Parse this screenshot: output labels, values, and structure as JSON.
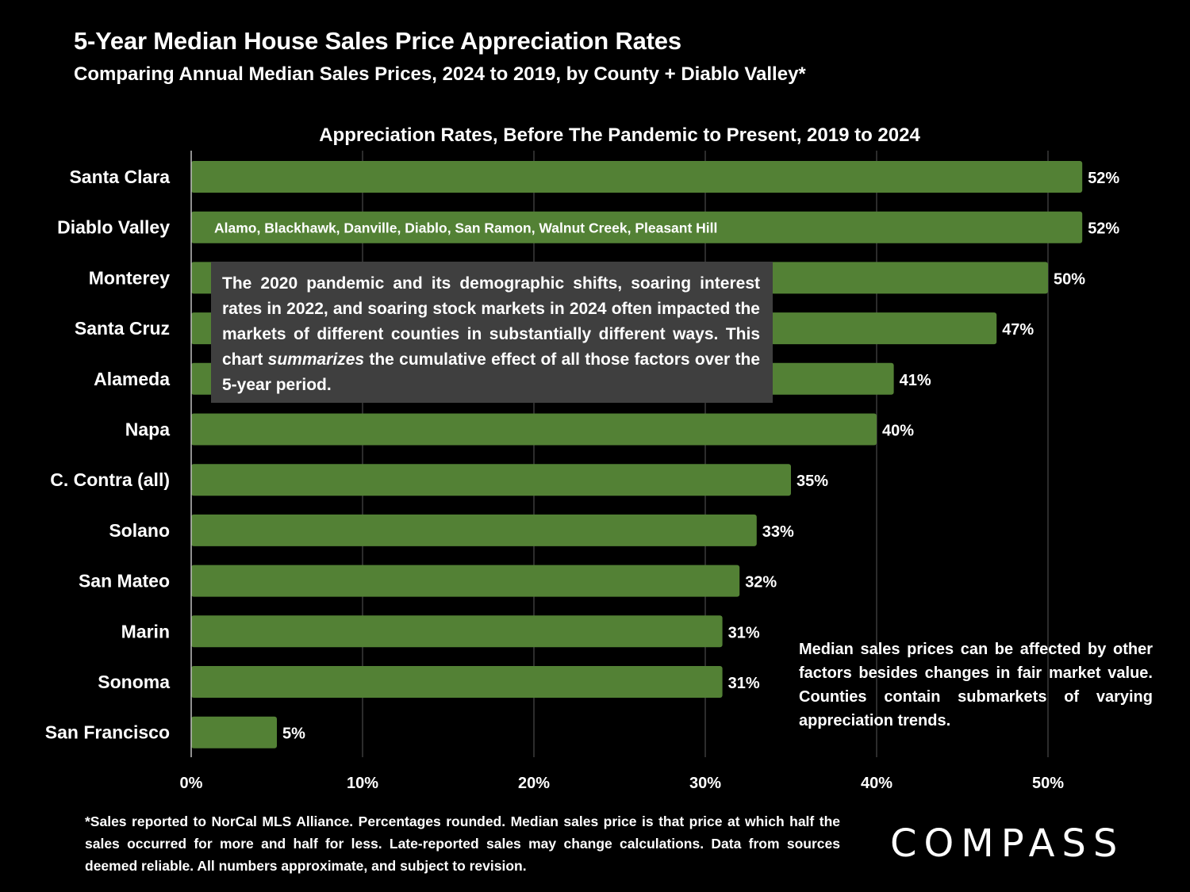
{
  "header": {
    "title": "5-Year Median House Sales Price Appreciation Rates",
    "subtitle": "Comparing Annual Median Sales Prices, 2024 to 2019, by County + Diablo Valley*"
  },
  "chart_data": {
    "type": "bar",
    "orientation": "horizontal",
    "title": "Appreciation Rates, Before The Pandemic to Present, 2019 to 2024",
    "categories": [
      "Santa Clara",
      "Diablo Valley",
      "Monterey",
      "Santa Cruz",
      "Alameda",
      "Napa",
      "C. Contra (all)",
      "Solano",
      "San Mateo",
      "Marin",
      "Sonoma",
      "San Francisco"
    ],
    "values": [
      52,
      52,
      50,
      47,
      41,
      40,
      35,
      33,
      32,
      31,
      31,
      5
    ],
    "value_labels": [
      "52%",
      "52%",
      "50%",
      "47%",
      "41%",
      "40%",
      "35%",
      "33%",
      "32%",
      "31%",
      "31%",
      "5%"
    ],
    "xlim": [
      0,
      55
    ],
    "xticks": [
      "0%",
      "10%",
      "20%",
      "30%",
      "40%",
      "50%"
    ],
    "xtick_values": [
      0,
      10,
      20,
      30,
      40,
      50
    ],
    "grid": "vertical gridlines",
    "bar_color": "#538135",
    "bar_annotation": {
      "category": "Diablo Valley",
      "text": "Alamo, Blackhawk, Danville, Diablo, San Ramon, Walnut Creek, Pleasant Hill"
    }
  },
  "callout": {
    "before": "The 2020 pandemic and its demographic shifts, soaring interest rates in 2022, and soaring stock markets in 2024 often impacted the markets of different counties in substantially different ways. This chart ",
    "emphasis": "summarizes",
    "after": " the cumulative effect of all those factors over the 5-year period."
  },
  "note": "Median sales prices can be affected by other factors besides changes in fair market value. Counties contain submarkets of varying appreciation trends.",
  "footnote": "*Sales reported to NorCal MLS Alliance. Percentages rounded. Median sales price is that price at which half the sales occurred for more and half for less.  Late-reported sales may change calculations. Data from sources deemed reliable. All numbers approximate, and subject to revision.",
  "logo": {
    "text": "COMPASS"
  }
}
